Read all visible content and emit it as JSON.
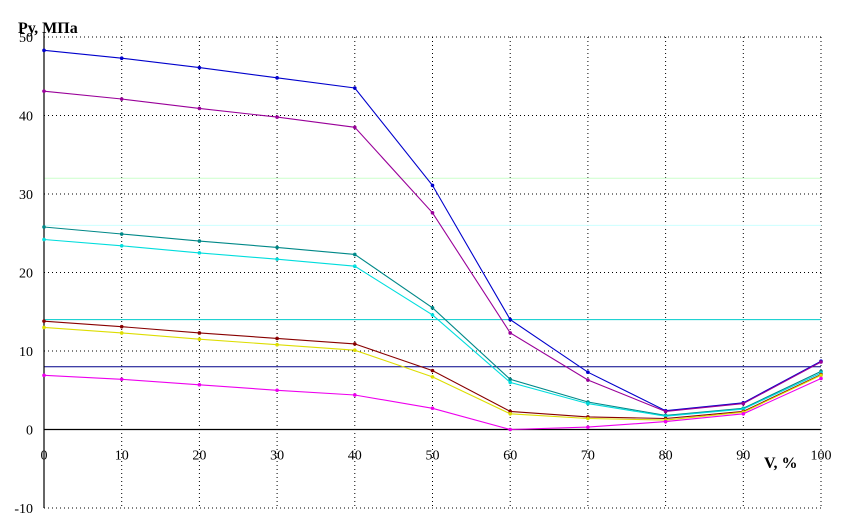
{
  "chart_data": {
    "type": "line",
    "ylabel": "Ру, МПа",
    "xlabel": "V, %",
    "xlim": [
      0,
      100
    ],
    "ylim": [
      -10,
      50
    ],
    "x_ticks": [
      "0",
      "10",
      "20",
      "30",
      "40",
      "50",
      "60",
      "70",
      "80",
      "90",
      "100"
    ],
    "y_ticks": [
      "-10",
      "0",
      "10",
      "20",
      "30",
      "40",
      "50"
    ],
    "grid": true,
    "x": [
      0,
      10,
      20,
      30,
      40,
      50,
      60,
      70,
      80,
      90,
      100
    ],
    "series": [
      {
        "color": "#0000cc",
        "values": [
          48.3,
          47.3,
          46.1,
          44.8,
          43.5,
          31.1,
          14.0,
          7.3,
          2.4,
          3.4,
          8.7
        ]
      },
      {
        "color": "#990099",
        "values": [
          43.1,
          42.1,
          40.9,
          39.8,
          38.5,
          27.6,
          12.3,
          6.3,
          2.3,
          3.3,
          8.6
        ]
      },
      {
        "color": "#008888",
        "values": [
          25.8,
          24.9,
          24.0,
          23.2,
          22.3,
          15.5,
          6.4,
          3.5,
          1.8,
          2.7,
          7.4
        ]
      },
      {
        "color": "#00dddd",
        "values": [
          24.2,
          23.4,
          22.5,
          21.7,
          20.8,
          14.6,
          6.0,
          3.3,
          1.7,
          2.6,
          7.2
        ]
      },
      {
        "color": "#880000",
        "values": [
          13.8,
          13.1,
          12.3,
          11.6,
          10.9,
          7.5,
          2.3,
          1.6,
          1.4,
          2.3,
          7.0
        ]
      },
      {
        "color": "#dddd00",
        "values": [
          13.0,
          12.3,
          11.5,
          10.8,
          10.1,
          6.7,
          2.0,
          1.4,
          1.2,
          2.2,
          6.9
        ]
      },
      {
        "color": "#ee00ee",
        "values": [
          6.9,
          6.4,
          5.7,
          5.0,
          4.4,
          2.7,
          0.0,
          0.3,
          1.0,
          2.0,
          6.5
        ]
      }
    ],
    "reference_lines": [
      {
        "y": 32,
        "color": "#ccffcc"
      },
      {
        "y": 26,
        "color": "#ccffff"
      },
      {
        "y": 14,
        "color": "#00cccc"
      },
      {
        "y": 8,
        "color": "#000088"
      }
    ]
  }
}
